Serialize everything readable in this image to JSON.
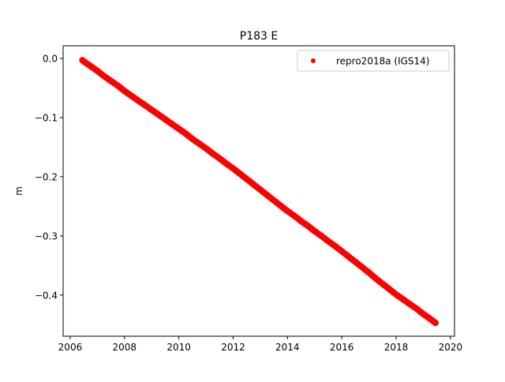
{
  "chart_data": {
    "type": "scatter",
    "title": "P183 E",
    "xlabel": "",
    "ylabel": "m",
    "xlim": [
      2005.74,
      2020.15
    ],
    "ylim": [
      -0.4696,
      0.0214
    ],
    "xticks": [
      2006,
      2008,
      2010,
      2012,
      2014,
      2016,
      2018,
      2020
    ],
    "xtick_labels": [
      "2006",
      "2008",
      "2010",
      "2012",
      "2014",
      "2016",
      "2018",
      "2020"
    ],
    "yticks": [
      0.0,
      -0.1,
      -0.2,
      -0.3,
      -0.4
    ],
    "ytick_labels": [
      "0.0",
      "−0.1",
      "−0.2",
      "−0.3",
      "−0.4"
    ],
    "grid": false,
    "legend_position": "top-right",
    "series": [
      {
        "name": "repro2018a (IGS14)",
        "color": "#ff0000",
        "marker": "dot",
        "x": [
          2006.45,
          2006.5,
          2006.75,
          2007.0,
          2007.25,
          2007.5,
          2007.75,
          2008.0,
          2008.25,
          2008.5,
          2008.75,
          2009.0,
          2009.25,
          2009.5,
          2009.75,
          2010.0,
          2010.25,
          2010.5,
          2010.75,
          2011.0,
          2011.25,
          2011.5,
          2011.75,
          2012.0,
          2012.25,
          2012.5,
          2012.75,
          2013.0,
          2013.25,
          2013.5,
          2013.75,
          2014.0,
          2014.25,
          2014.5,
          2014.75,
          2015.0,
          2015.25,
          2015.5,
          2015.75,
          2016.0,
          2016.25,
          2016.5,
          2016.75,
          2017.0,
          2017.25,
          2017.5,
          2017.75,
          2018.0,
          2018.25,
          2018.5,
          2018.75,
          2019.0,
          2019.25,
          2019.45
        ],
        "y": [
          -0.003,
          -0.005,
          -0.013,
          -0.021,
          -0.03,
          -0.038,
          -0.046,
          -0.055,
          -0.063,
          -0.071,
          -0.079,
          -0.087,
          -0.095,
          -0.103,
          -0.111,
          -0.119,
          -0.127,
          -0.136,
          -0.144,
          -0.152,
          -0.161,
          -0.169,
          -0.178,
          -0.186,
          -0.195,
          -0.204,
          -0.213,
          -0.222,
          -0.231,
          -0.24,
          -0.249,
          -0.258,
          -0.266,
          -0.275,
          -0.283,
          -0.292,
          -0.3,
          -0.309,
          -0.317,
          -0.326,
          -0.335,
          -0.344,
          -0.353,
          -0.362,
          -0.372,
          -0.381,
          -0.39,
          -0.399,
          -0.407,
          -0.415,
          -0.423,
          -0.432,
          -0.44,
          -0.447
        ]
      }
    ]
  }
}
